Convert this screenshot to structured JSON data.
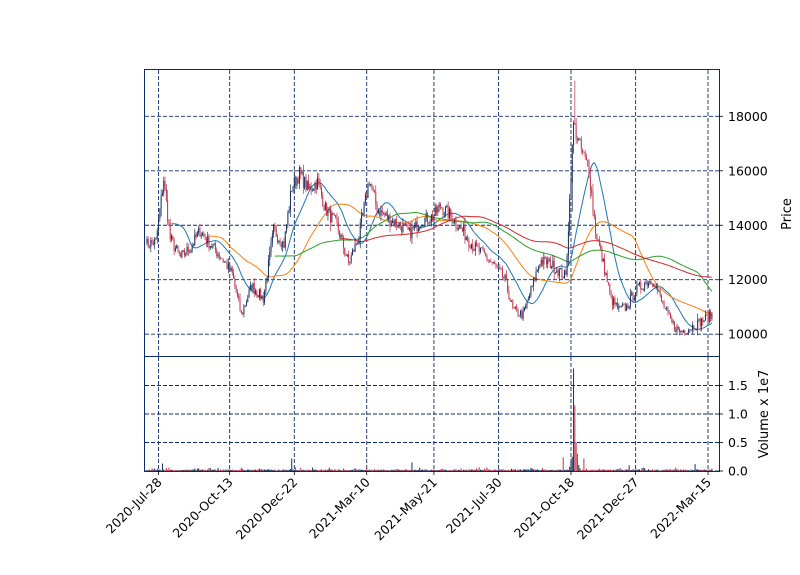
{
  "chart_data": {
    "type": "candlestick",
    "x_tick_labels": [
      "2020-Jul-28",
      "2020-Oct-13",
      "2020-Dec-22",
      "2021-Mar-10",
      "2021-May-21",
      "2021-Jul-30",
      "2021-Oct-18",
      "2021-Dec-27",
      "2022-Mar-15"
    ],
    "x_range": [
      "2020-Jul-14",
      "2022-Mar-25"
    ],
    "price_panel": {
      "ylabel": "Price",
      "ylim": [
        9200,
        19700
      ],
      "y_ticks": [
        10000,
        12000,
        14000,
        16000,
        18000
      ]
    },
    "volume_panel": {
      "ylabel": "Volume x 1e7",
      "ylim": [
        0,
        2.0
      ],
      "y_ticks": [
        "0.0",
        "0.5",
        "1.0",
        "1.5"
      ]
    },
    "grid": true,
    "grid_style": "dashed",
    "close_anchors": [
      [
        "2020-07-15",
        13300
      ],
      [
        "2020-07-24",
        13400
      ],
      [
        "2020-08-03",
        15700
      ],
      [
        "2020-08-10",
        13500
      ],
      [
        "2020-08-20",
        12800
      ],
      [
        "2020-09-01",
        13200
      ],
      [
        "2020-09-10",
        13800
      ],
      [
        "2020-09-22",
        13300
      ],
      [
        "2020-10-05",
        12800
      ],
      [
        "2020-10-15",
        12200
      ],
      [
        "2020-10-26",
        10700
      ],
      [
        "2020-11-05",
        11800
      ],
      [
        "2020-11-18",
        11300
      ],
      [
        "2020-11-30",
        13800
      ],
      [
        "2020-12-10",
        13300
      ],
      [
        "2020-12-18",
        15400
      ],
      [
        "2020-12-28",
        15900
      ],
      [
        "2021-01-06",
        15300
      ],
      [
        "2021-01-15",
        15600
      ],
      [
        "2021-01-25",
        14600
      ],
      [
        "2021-02-05",
        14000
      ],
      [
        "2021-02-18",
        12600
      ],
      [
        "2021-03-02",
        13600
      ],
      [
        "2021-03-12",
        15700
      ],
      [
        "2021-03-22",
        14600
      ],
      [
        "2021-04-05",
        14200
      ],
      [
        "2021-04-15",
        14000
      ],
      [
        "2021-04-26",
        13700
      ],
      [
        "2021-05-10",
        14200
      ],
      [
        "2021-05-20",
        14300
      ],
      [
        "2021-05-28",
        14700
      ],
      [
        "2021-06-10",
        14300
      ],
      [
        "2021-06-22",
        13800
      ],
      [
        "2021-07-05",
        13200
      ],
      [
        "2021-07-15",
        12900
      ],
      [
        "2021-07-27",
        12500
      ],
      [
        "2021-08-06",
        12000
      ],
      [
        "2021-08-16",
        10900
      ],
      [
        "2021-08-26",
        10700
      ],
      [
        "2021-09-03",
        11600
      ],
      [
        "2021-09-14",
        12700
      ],
      [
        "2021-09-24",
        12600
      ],
      [
        "2021-10-05",
        12300
      ],
      [
        "2021-10-12",
        12100
      ],
      [
        "2021-10-20",
        17700
      ],
      [
        "2021-10-27",
        16900
      ],
      [
        "2021-11-05",
        16000
      ],
      [
        "2021-11-12",
        13800
      ],
      [
        "2021-11-22",
        12600
      ],
      [
        "2021-11-30",
        11300
      ],
      [
        "2021-12-08",
        10900
      ],
      [
        "2021-12-16",
        11000
      ],
      [
        "2021-12-27",
        11600
      ],
      [
        "2022-01-06",
        11900
      ],
      [
        "2022-01-14",
        12000
      ],
      [
        "2022-01-24",
        11200
      ],
      [
        "2022-02-03",
        10400
      ],
      [
        "2022-02-11",
        10100
      ],
      [
        "2022-02-22",
        10200
      ],
      [
        "2022-03-03",
        10400
      ],
      [
        "2022-03-14",
        10600
      ],
      [
        "2022-03-18",
        10700
      ]
    ],
    "volume_anchors": [
      [
        "2020-08-01",
        0.13
      ],
      [
        "2020-09-21",
        0.05
      ],
      [
        "2020-12-18",
        0.22
      ],
      [
        "2021-01-10",
        0.06
      ],
      [
        "2021-03-10",
        0.07
      ],
      [
        "2021-04-28",
        0.15
      ],
      [
        "2021-10-08",
        0.24
      ],
      [
        "2021-10-19",
        0.25
      ],
      [
        "2021-10-20",
        1.8
      ],
      [
        "2021-10-21",
        1.15
      ],
      [
        "2021-10-22",
        0.5
      ],
      [
        "2021-10-25",
        0.3
      ],
      [
        "2021-11-01",
        0.22
      ],
      [
        "2021-12-20",
        0.1
      ],
      [
        "2022-01-05",
        0.05
      ],
      [
        "2022-03-01",
        0.12
      ]
    ],
    "moving_averages": [
      {
        "window": 20,
        "color": "#1f77b4"
      },
      {
        "window": 50,
        "color": "#ff7f0e"
      },
      {
        "window": 100,
        "color": "#2ca02c"
      },
      {
        "window": 150,
        "color": "#d62728"
      }
    ],
    "colors": {
      "up": "#182f5e",
      "down": "#c0334a",
      "frame": "#0d2a6b",
      "grid": "#0d2a6b"
    }
  }
}
